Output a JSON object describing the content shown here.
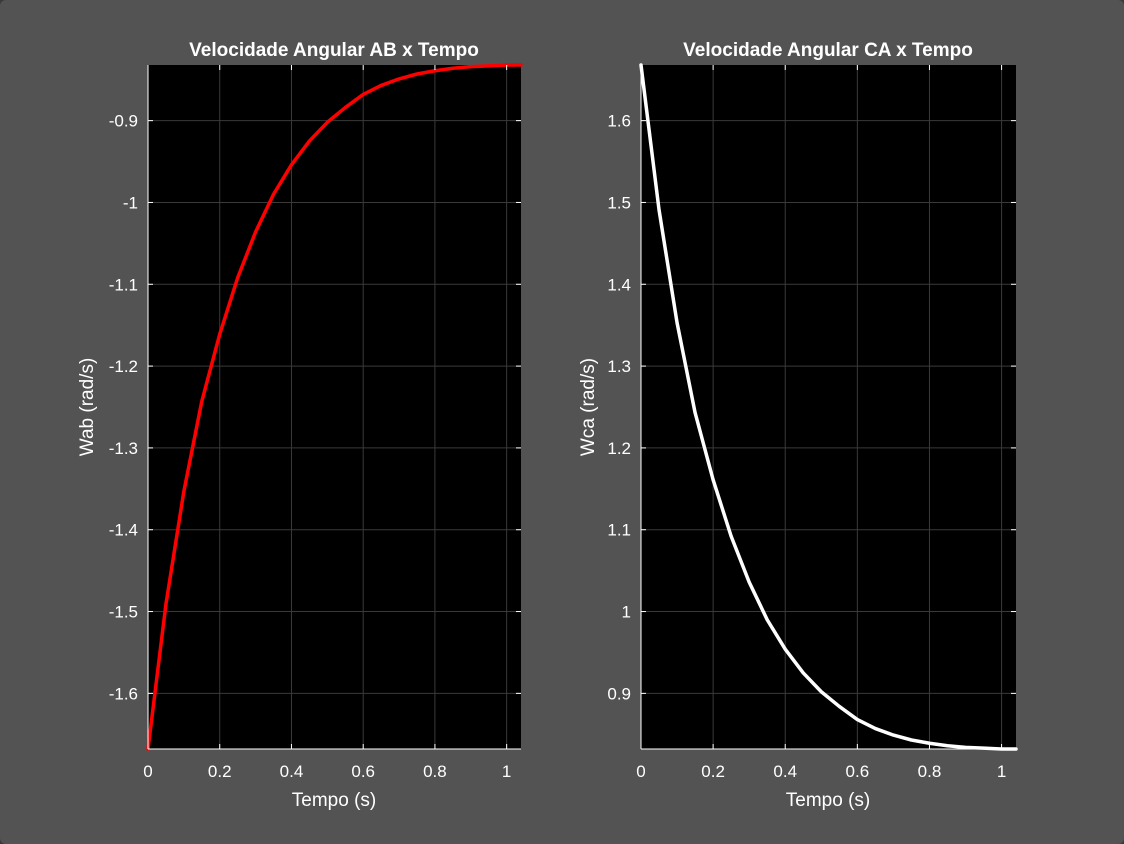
{
  "window": {
    "background": "#535353",
    "axes_background": "#000000",
    "grid_color": "#3a3a3a",
    "axis_color": "#ffffff"
  },
  "chart_data": [
    {
      "type": "line",
      "title": "Velocidade Angular AB x Tempo",
      "xlabel": "Tempo (s)",
      "ylabel": "Wab (rad/s)",
      "xlim": [
        0,
        1.04
      ],
      "ylim": [
        -1.668,
        -0.832
      ],
      "xticks": [
        0,
        0.2,
        0.4,
        0.6,
        0.8,
        1
      ],
      "xtick_labels": [
        "0",
        "0.2",
        "0.4",
        "0.6",
        "0.8",
        "1"
      ],
      "yticks": [
        -1.6,
        -1.5,
        -1.4,
        -1.3,
        -1.2,
        -1.1,
        -1.0,
        -0.9
      ],
      "ytick_labels": [
        "-1.6",
        "-1.5",
        "-1.4",
        "-1.3",
        "-1.2",
        "-1.1",
        "-1",
        "-0.9"
      ],
      "grid": true,
      "series": [
        {
          "color": "#ff0000",
          "x": [
            0,
            0.05,
            0.1,
            0.15,
            0.2,
            0.25,
            0.3,
            0.35,
            0.4,
            0.45,
            0.5,
            0.55,
            0.6,
            0.65,
            0.7,
            0.75,
            0.8,
            0.85,
            0.9,
            0.95,
            1.0,
            1.04
          ],
          "y": [
            -1.668,
            -1.491,
            -1.353,
            -1.243,
            -1.161,
            -1.092,
            -1.036,
            -0.99,
            -0.954,
            -0.925,
            -0.902,
            -0.884,
            -0.868,
            -0.857,
            -0.849,
            -0.843,
            -0.839,
            -0.836,
            -0.834,
            -0.833,
            -0.832,
            -0.832
          ]
        }
      ]
    },
    {
      "type": "line",
      "title": "Velocidade Angular CA x Tempo",
      "xlabel": "Tempo (s)",
      "ylabel": "Wca (rad/s)",
      "xlim": [
        0,
        1.04
      ],
      "ylim": [
        0.832,
        1.668
      ],
      "xticks": [
        0,
        0.2,
        0.4,
        0.6,
        0.8,
        1
      ],
      "xtick_labels": [
        "0",
        "0.2",
        "0.4",
        "0.6",
        "0.8",
        "1"
      ],
      "yticks": [
        0.9,
        1.0,
        1.1,
        1.2,
        1.3,
        1.4,
        1.5,
        1.6
      ],
      "ytick_labels": [
        "0.9",
        "1",
        "1.1",
        "1.2",
        "1.3",
        "1.4",
        "1.5",
        "1.6"
      ],
      "grid": true,
      "series": [
        {
          "color": "#ffffff",
          "x": [
            0,
            0.05,
            0.1,
            0.15,
            0.2,
            0.25,
            0.3,
            0.35,
            0.4,
            0.45,
            0.5,
            0.55,
            0.6,
            0.65,
            0.7,
            0.75,
            0.8,
            0.85,
            0.9,
            0.95,
            1.0,
            1.04
          ],
          "y": [
            1.668,
            1.491,
            1.353,
            1.243,
            1.161,
            1.092,
            1.036,
            0.99,
            0.954,
            0.925,
            0.902,
            0.884,
            0.868,
            0.857,
            0.849,
            0.843,
            0.839,
            0.836,
            0.834,
            0.833,
            0.832,
            0.832
          ]
        }
      ]
    }
  ]
}
